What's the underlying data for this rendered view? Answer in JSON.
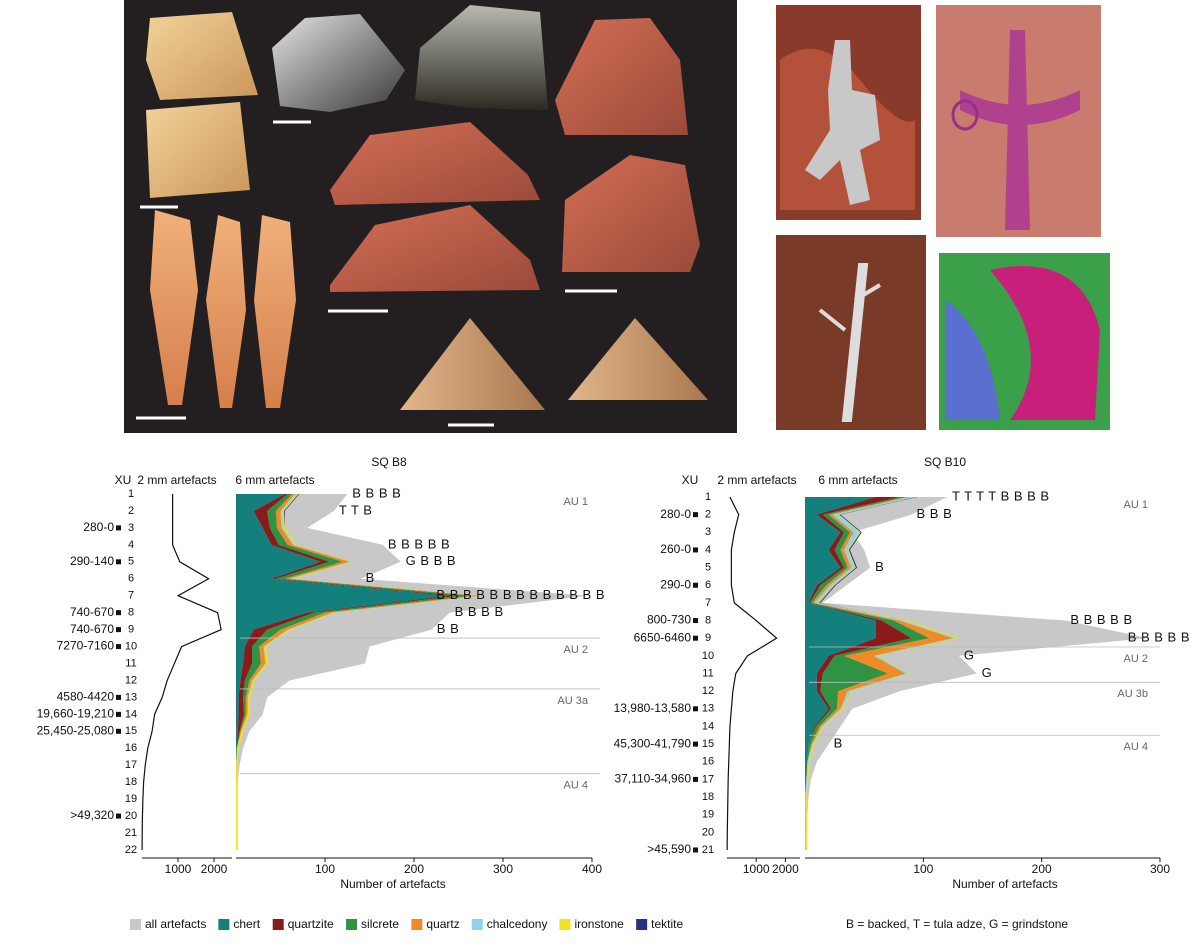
{
  "chart_data": [
    {
      "type": "stratigraphy",
      "title": "SQ B8",
      "depth_label": "XU",
      "x_label": "Number of artefacts",
      "label": "6 mm artefacts",
      "categories": [
        "1",
        "2",
        "3",
        "4",
        "5",
        "6",
        "7",
        "8",
        "9",
        "10",
        "11",
        "12",
        "13",
        "14",
        "15",
        "16",
        "17",
        "18",
        "19",
        "20",
        "21",
        "22"
      ],
      "dates": [
        null,
        null,
        "280-0",
        null,
        "290-140",
        null,
        null,
        "740-670",
        "740-670",
        "7270-7160",
        null,
        null,
        "4580-4420",
        "19,660-19,210",
        "25,450-25,080",
        null,
        null,
        null,
        null,
        ">49,320",
        null,
        null
      ],
      "fine_fraction": {
        "label": "2 mm artefacts",
        "values": [
          850,
          850,
          850,
          850,
          1050,
          1850,
          1000,
          2100,
          2200,
          1100,
          900,
          700,
          560,
          350,
          280,
          160,
          90,
          45,
          25,
          12,
          6,
          2
        ],
        "xlim": [
          0,
          2500
        ],
        "xticks": [
          1000,
          2000
        ]
      },
      "xlim": [
        0,
        400
      ],
      "xticks": [
        100,
        200,
        300,
        400
      ],
      "total": {
        "name": "all artefacts",
        "color": "#c8c8c8",
        "values": [
          125,
          110,
          80,
          165,
          185,
          140,
          395,
          240,
          220,
          150,
          145,
          60,
          35,
          30,
          15,
          8,
          4,
          2,
          1,
          1,
          1,
          0
        ]
      },
      "series": [
        {
          "name": "chert",
          "color": "#13807e",
          "values": [
            55,
            20,
            30,
            40,
            95,
            40,
            240,
            80,
            20,
            10,
            8,
            5,
            3,
            3,
            2,
            1,
            0,
            0,
            0,
            0,
            0,
            0
          ]
        },
        {
          "name": "quartzite",
          "color": "#8b1a1a",
          "values": [
            3,
            15,
            8,
            8,
            10,
            5,
            10,
            8,
            15,
            8,
            10,
            5,
            5,
            6,
            2,
            0,
            0,
            0,
            0,
            0,
            0,
            0
          ]
        },
        {
          "name": "silcrete",
          "color": "#2e9444",
          "values": [
            5,
            10,
            8,
            10,
            15,
            10,
            15,
            12,
            15,
            8,
            10,
            5,
            3,
            2,
            1,
            0,
            0,
            0,
            0,
            0,
            0,
            0
          ]
        },
        {
          "name": "quartz",
          "color": "#f08a24",
          "values": [
            3,
            5,
            5,
            6,
            8,
            5,
            8,
            8,
            8,
            5,
            5,
            3,
            2,
            2,
            1,
            0,
            0,
            0,
            0,
            0,
            0,
            0
          ]
        },
        {
          "name": "chalcedony",
          "color": "#8fd3e8",
          "values": [
            2,
            2,
            2,
            2,
            2,
            1,
            2,
            2,
            2,
            1,
            1,
            1,
            1,
            0,
            0,
            0,
            0,
            0,
            0,
            0,
            0,
            0
          ]
        },
        {
          "name": "ironstone",
          "color": "#f2e21c",
          "values": [
            2,
            2,
            2,
            2,
            2,
            2,
            2,
            2,
            2,
            2,
            2,
            2,
            2,
            2,
            2,
            2,
            2,
            2,
            2,
            2,
            2,
            2
          ]
        },
        {
          "name": "tektite",
          "color": "#2a2f7f",
          "values": [
            1,
            1,
            0,
            0,
            0,
            0,
            0,
            0,
            0,
            0,
            0,
            0,
            0,
            0,
            0,
            0,
            0,
            0,
            0,
            0,
            0,
            0
          ]
        }
      ],
      "annotations": [
        {
          "at": "1",
          "text": "B B B B"
        },
        {
          "at": "2",
          "text": "T T B"
        },
        {
          "at": "4",
          "text": "B B B B B"
        },
        {
          "at": "5",
          "text": "G B B B"
        },
        {
          "at": "6",
          "text": "B"
        },
        {
          "at": "7",
          "text": "B B B B B B B B B B B B B"
        },
        {
          "at": "8",
          "text": "B B B B"
        },
        {
          "at": "9",
          "text": "B B"
        }
      ],
      "units": [
        {
          "label": "AU 1",
          "top": "1"
        },
        {
          "label": "AU 2",
          "top": "10"
        },
        {
          "label": "AU 3a",
          "top": "13"
        },
        {
          "label": "AU 4",
          "top": "18"
        }
      ]
    },
    {
      "type": "stratigraphy",
      "title": "SQ B10",
      "depth_label": "XU",
      "x_label": "Number of artefacts",
      "label": "6 mm artefacts",
      "categories": [
        "1",
        "2",
        "3",
        "4",
        "5",
        "6",
        "7",
        "8",
        "9",
        "10",
        "11",
        "12",
        "13",
        "14",
        "15",
        "16",
        "17",
        "18",
        "19",
        "20",
        "21"
      ],
      "dates": [
        null,
        "280-0",
        null,
        "260-0",
        null,
        "290-0",
        null,
        "800-730",
        "6650-6460",
        null,
        null,
        null,
        "13,980-13,580",
        null,
        "45,300-41,790",
        null,
        "37,110-34,960",
        null,
        null,
        null,
        ">45,590"
      ],
      "fine_fraction": {
        "label": "2 mm artefacts",
        "values": [
          100,
          400,
          250,
          150,
          150,
          150,
          250,
          1000,
          1700,
          700,
          300,
          200,
          150,
          100,
          80,
          60,
          40,
          30,
          20,
          10,
          5
        ],
        "xlim": [
          0,
          2500
        ],
        "xticks": [
          1000,
          2000
        ]
      },
      "xlim": [
        0,
        300
      ],
      "xticks": [
        100,
        200,
        300
      ],
      "total": {
        "values": [
          120,
          90,
          40,
          50,
          55,
          35,
          15,
          220,
          290,
          130,
          145,
          80,
          40,
          30,
          20,
          10,
          5,
          3,
          2,
          1,
          1
        ]
      },
      "series": [
        {
          "values": [
            60,
            10,
            30,
            20,
            30,
            10,
            3,
            60,
            60,
            20,
            10,
            10,
            20,
            8,
            3,
            2,
            1,
            0,
            0,
            0,
            0
          ]
        },
        {
          "values": [
            20,
            5,
            3,
            5,
            3,
            3,
            1,
            5,
            30,
            5,
            5,
            3,
            2,
            1,
            0,
            0,
            0,
            0,
            0,
            0,
            0
          ]
        },
        {
          "values": [
            5,
            5,
            5,
            5,
            3,
            5,
            2,
            10,
            15,
            8,
            55,
            15,
            5,
            3,
            2,
            0,
            0,
            0,
            0,
            0,
            0
          ]
        },
        {
          "values": [
            3,
            3,
            3,
            3,
            3,
            3,
            2,
            5,
            20,
            25,
            15,
            8,
            3,
            2,
            1,
            0,
            0,
            0,
            0,
            0,
            0
          ]
        },
        {
          "values": [
            5,
            5,
            5,
            3,
            3,
            3,
            3,
            3,
            3,
            3,
            3,
            3,
            1,
            1,
            1,
            1,
            1,
            1,
            1,
            1,
            1
          ]
        },
        {
          "values": [
            1,
            1,
            1,
            1,
            1,
            1,
            1,
            3,
            3,
            1,
            1,
            1,
            1,
            1,
            1,
            1,
            1,
            1,
            1,
            1,
            1
          ]
        },
        {
          "values": [
            1,
            1,
            1,
            1,
            1,
            1,
            1,
            0,
            0,
            0,
            0,
            0,
            0,
            0,
            0,
            0,
            0,
            0,
            0,
            0,
            0
          ]
        }
      ],
      "annotations": [
        {
          "at": "1",
          "text": "T T T T B B B B"
        },
        {
          "at": "2",
          "text": "B B B"
        },
        {
          "at": "5",
          "text": "B"
        },
        {
          "at": "8",
          "text": "B B B B B"
        },
        {
          "at": "9",
          "text": "B B B B B"
        },
        {
          "at": "10",
          "text": "G"
        },
        {
          "at": "11",
          "text": "G"
        },
        {
          "at": "15",
          "text": "B"
        }
      ],
      "units": [
        {
          "label": "AU 1",
          "top": "1"
        },
        {
          "label": "AU 2",
          "top": "10"
        },
        {
          "label": "AU 3b",
          "top": "12"
        },
        {
          "label": "AU 4",
          "top": "15"
        }
      ]
    }
  ],
  "note": "B = backed, T = tula adze, G = grindstone"
}
